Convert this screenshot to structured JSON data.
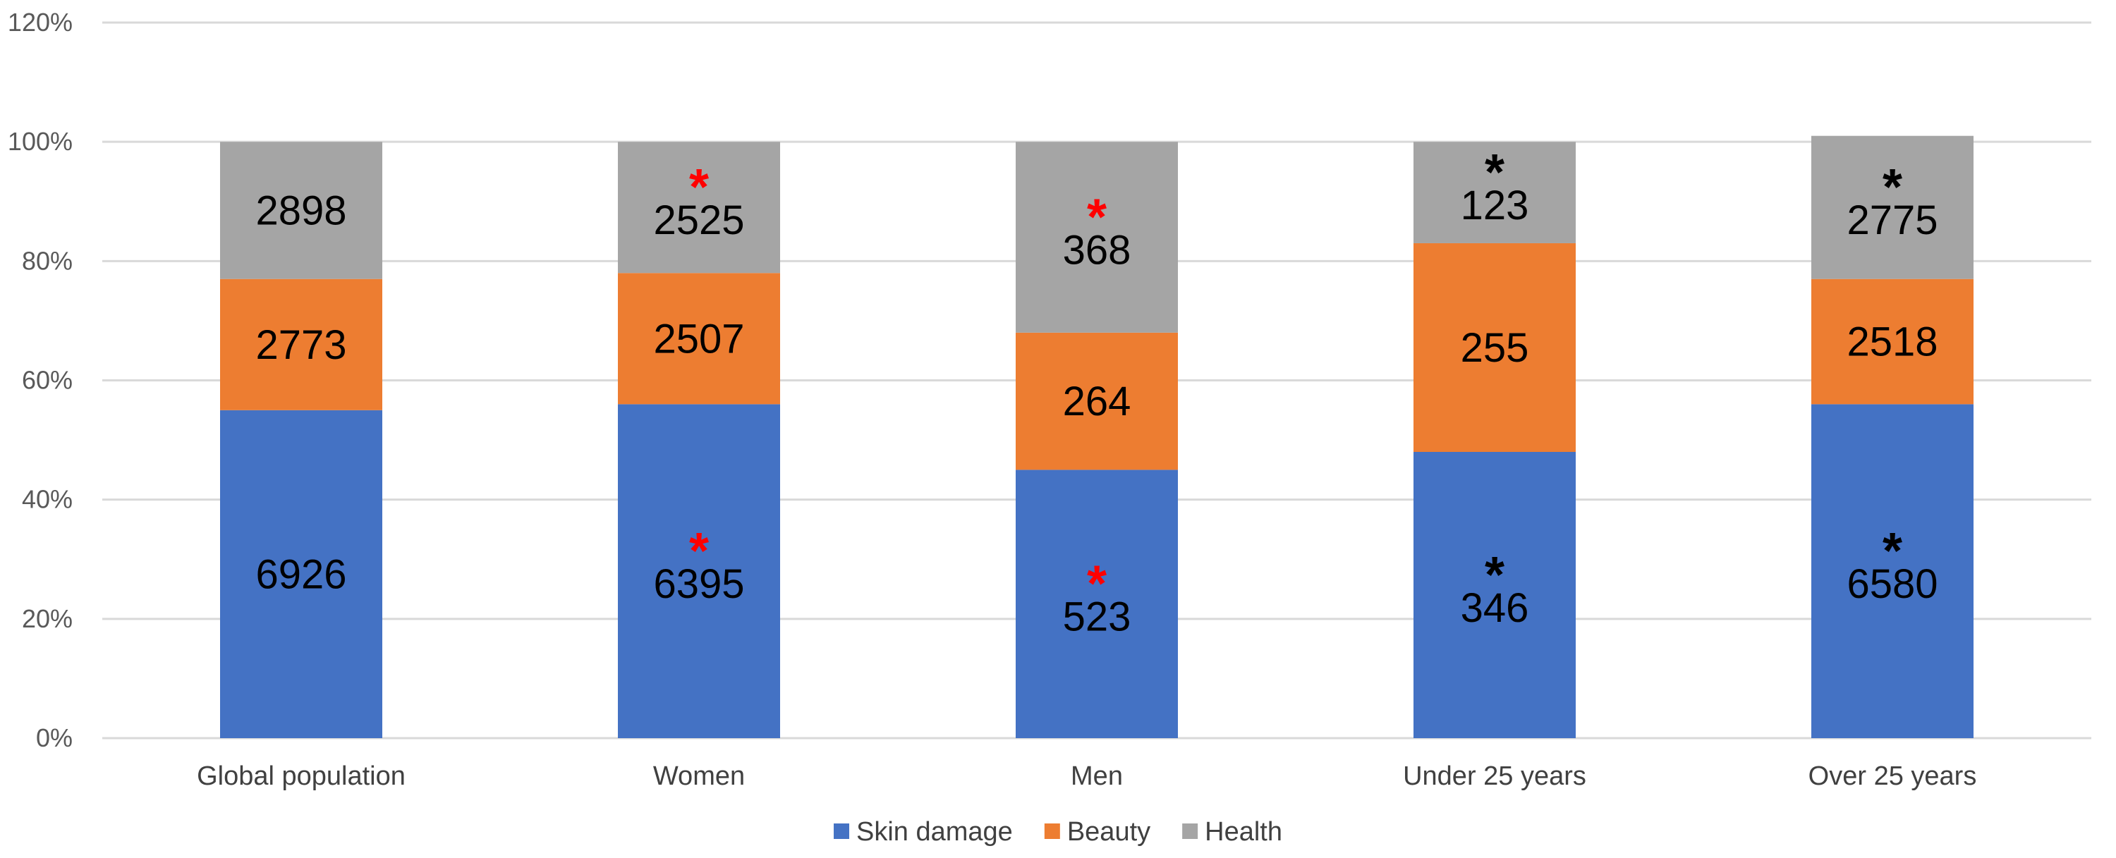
{
  "chart_data": {
    "type": "bar",
    "stacked": true,
    "categories": [
      "Global population",
      "Women",
      "Men",
      "Under 25 years",
      "Over 25 years"
    ],
    "y_ticks": [
      "0%",
      "20%",
      "40%",
      "60%",
      "80%",
      "100%",
      "120%"
    ],
    "ylim": [
      0,
      120
    ],
    "grid": true,
    "legend_position": "bottom",
    "series": [
      {
        "name": "Skin damage",
        "color": "#4472C4",
        "values": [
          55,
          56,
          45,
          48,
          56
        ],
        "labels": [
          "6926",
          "6395",
          "523",
          "346",
          "6580"
        ],
        "stars": [
          "",
          "*",
          "*",
          "*",
          "*"
        ],
        "star_colors": [
          "",
          "#FF0000",
          "#FF0000",
          "#000000",
          "#000000"
        ]
      },
      {
        "name": "Beauty",
        "color": "#ED7D31",
        "values": [
          22,
          22,
          23,
          35,
          21
        ],
        "labels": [
          "2773",
          "2507",
          "264",
          "255",
          "2518"
        ],
        "stars": [
          "",
          "",
          "",
          "",
          ""
        ],
        "star_colors": [
          "",
          "",
          "",
          "",
          ""
        ]
      },
      {
        "name": "Health",
        "color": "#A5A5A5",
        "values": [
          23,
          22,
          32,
          17,
          24
        ],
        "labels": [
          "2898",
          "2525",
          "368",
          "123",
          "2775"
        ],
        "stars": [
          "",
          "*",
          "*",
          "*",
          "*"
        ],
        "star_colors": [
          "",
          "#FF0000",
          "#FF0000",
          "#000000",
          "#000000"
        ]
      }
    ]
  }
}
